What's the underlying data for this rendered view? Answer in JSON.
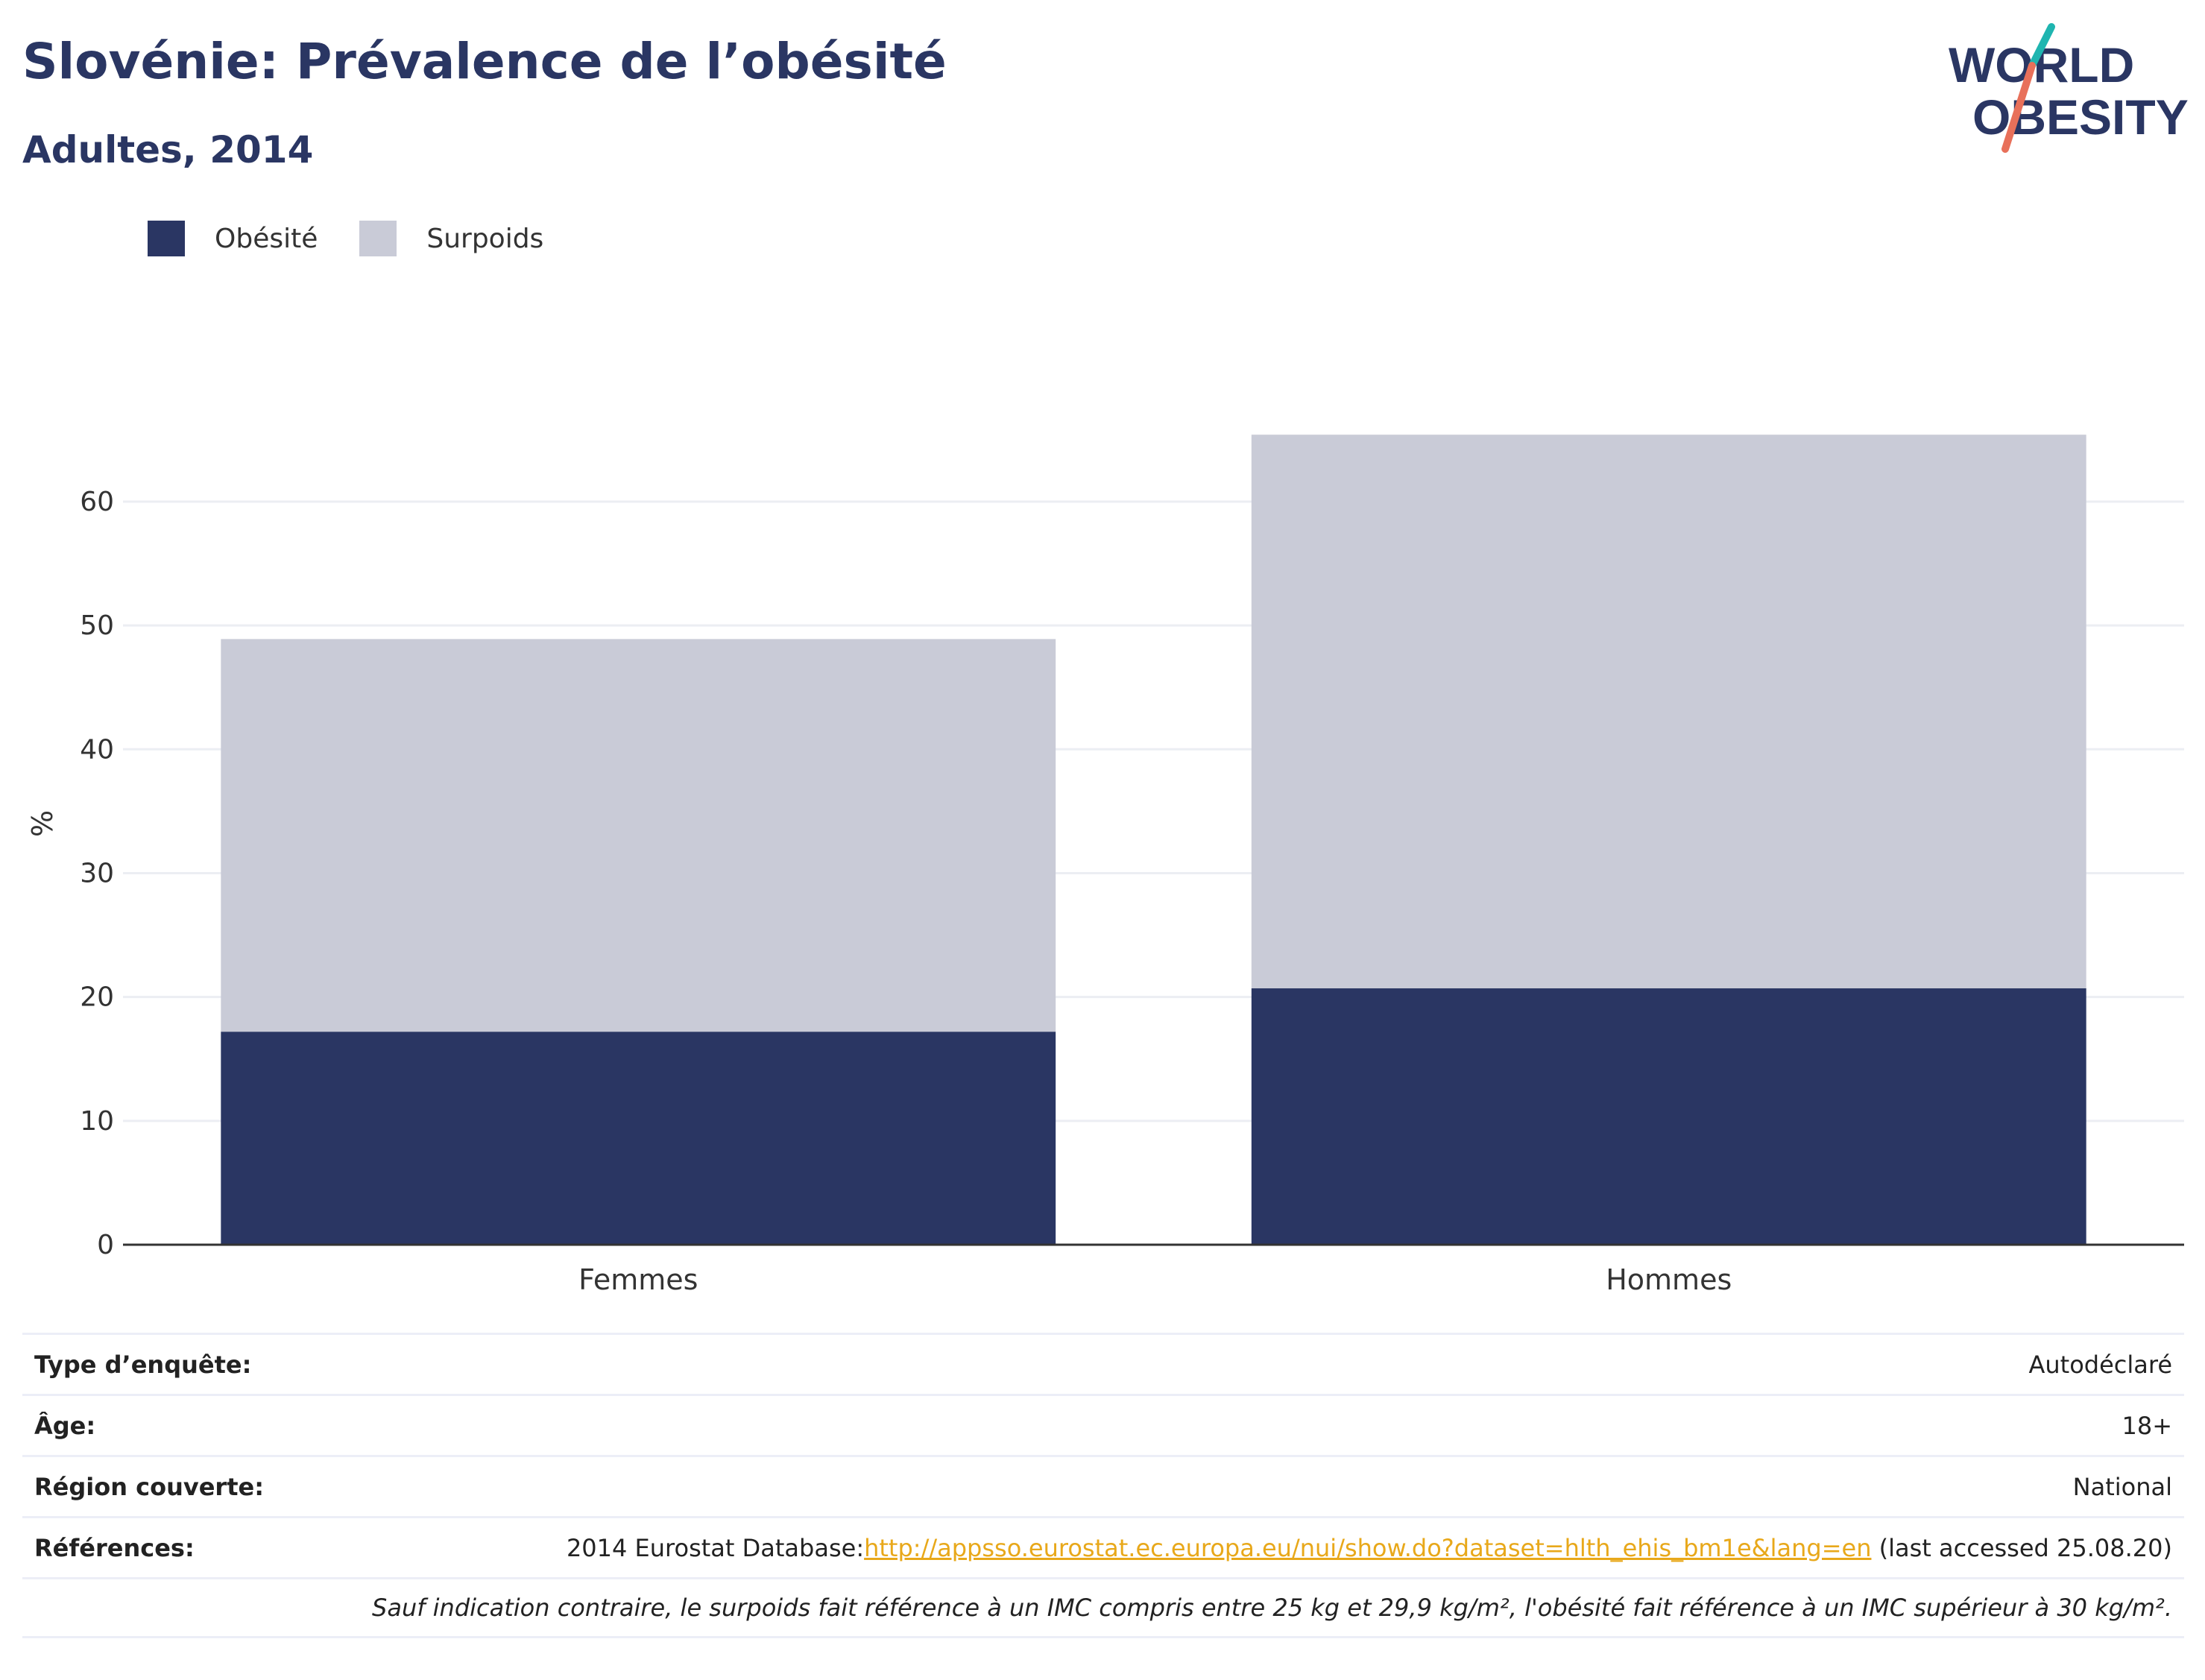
{
  "header": {
    "title": "Slovénie: Prévalence de l’obésité",
    "subtitle": "Adultes, 2014"
  },
  "logo": {
    "line1": "WORLD",
    "line2": "OBESITY"
  },
  "colors": {
    "obesity": "#2a3663",
    "overweight": "#c9cbd7",
    "grid": "#eceef3",
    "axis": "#333333",
    "link": "#e8a81a"
  },
  "chart_data": {
    "type": "bar",
    "stacked": true,
    "categories": [
      "Femmes",
      "Hommes"
    ],
    "series": [
      {
        "name": "Obésité",
        "values": [
          17.2,
          20.7
        ]
      },
      {
        "name": "Surpoids",
        "values": [
          31.7,
          44.7
        ]
      }
    ],
    "ylabel": "%",
    "ylim": [
      0,
      68
    ],
    "yticks": [
      0,
      10,
      20,
      30,
      40,
      50,
      60
    ],
    "grid": true,
    "legend_position": "top-left"
  },
  "info": {
    "rows": [
      {
        "label": "Type d’enquête:",
        "value": "Autodéclaré"
      },
      {
        "label": "Âge:",
        "value": "18+"
      },
      {
        "label": "Région couverte:",
        "value": "National"
      }
    ],
    "references": {
      "label": "Références:",
      "prefix": "2014 Eurostat Database:",
      "link": "http://appsso.eurostat.ec.europa.eu/nui/show.do?dataset=hlth_ehis_bm1e&lang=en",
      "suffix": " (last accessed 25.08.20)"
    },
    "note": "Sauf indication contraire, le surpoids fait référence à un IMC compris entre 25 kg et 29,9 kg/m², l'obésité fait référence à un IMC supérieur à 30 kg/m²."
  }
}
